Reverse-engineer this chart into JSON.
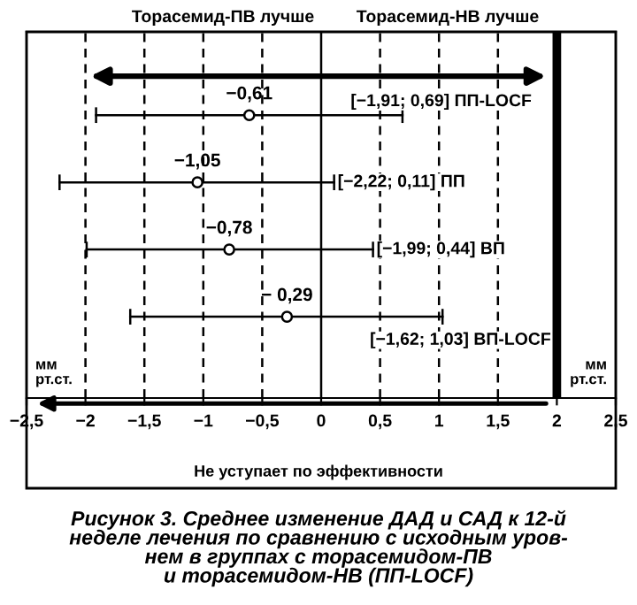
{
  "chart_data": {
    "type": "scatter",
    "orientation": "horizontal",
    "title": "Рисунок 3. Среднее изменение ДАД и САД к 12-й\nнеделе лечения по сравнению с исходным уров-\nнем в группах с торасемидом-ПВ\nи торасемидом-НВ (ПП-LOCF)",
    "categories": [
      null,
      null,
      null,
      null
    ],
    "values": [
      -0.61,
      -1.05,
      -0.78,
      -0.29
    ],
    "value_labels": [
      "−0,61",
      "−1,05",
      "−0,78",
      "− 0,29"
    ],
    "errors": [
      [
        -1.91,
        0.69
      ],
      [
        -2.22,
        0.11
      ],
      [
        -1.99,
        0.44
      ],
      [
        -1.62,
        1.03
      ]
    ],
    "color": "#000000",
    "marker": "circle",
    "xlim": [
      -2.5,
      2.5
    ],
    "xticks": [
      {
        "value": -2.5,
        "label": "−2,5"
      },
      {
        "value": -2,
        "label": "−2"
      },
      {
        "value": -1.5,
        "label": "−1,5"
      },
      {
        "value": -1,
        "label": "−1"
      },
      {
        "value": -0.5,
        "label": "−0,5"
      },
      0,
      {
        "value": 0.5,
        "label": "0,5"
      },
      1,
      {
        "value": 1.5,
        "label": "1,5"
      },
      2,
      {
        "value": 2.5,
        "label": "2,5"
      }
    ],
    "tick_labels": "x",
    "ref_lines": [
      {
        "axis": "x",
        "value": -2,
        "line_style": "dashed",
        "color": "#000000"
      },
      {
        "axis": "x",
        "value": -1.5,
        "line_style": "dashed",
        "color": "#000000"
      },
      {
        "axis": "x",
        "value": -1,
        "line_style": "dashed",
        "color": "#000000"
      },
      {
        "axis": "x",
        "value": -0.5,
        "line_style": "dashed",
        "color": "#000000"
      },
      {
        "axis": "x",
        "value": 0,
        "line_style": "solid",
        "color": "#000000"
      },
      {
        "axis": "x",
        "value": 0.5,
        "line_style": "dashed",
        "color": "#000000"
      },
      {
        "axis": "x",
        "value": 1,
        "line_style": "dashed",
        "color": "#000000"
      },
      {
        "axis": "x",
        "value": 1.5,
        "line_style": "dashed",
        "color": "#000000"
      },
      {
        "axis": "x",
        "value": 2,
        "line_style": "solid",
        "color": "#000000"
      }
    ],
    "annotations": [
      "[−1,91; 0,69] ПП-LOCF",
      "[−2,22; 0,11] ПП",
      "[−1,99; 0,44] ВП",
      "[−1,62; 1,03] ВП-LOCF",
      "Торасемид-ПВ лучше",
      "Торасемид-НВ лучше",
      "мм\nрт.ст.",
      "мм\nрт.ст.",
      "Не уступает по эффективности"
    ]
  }
}
